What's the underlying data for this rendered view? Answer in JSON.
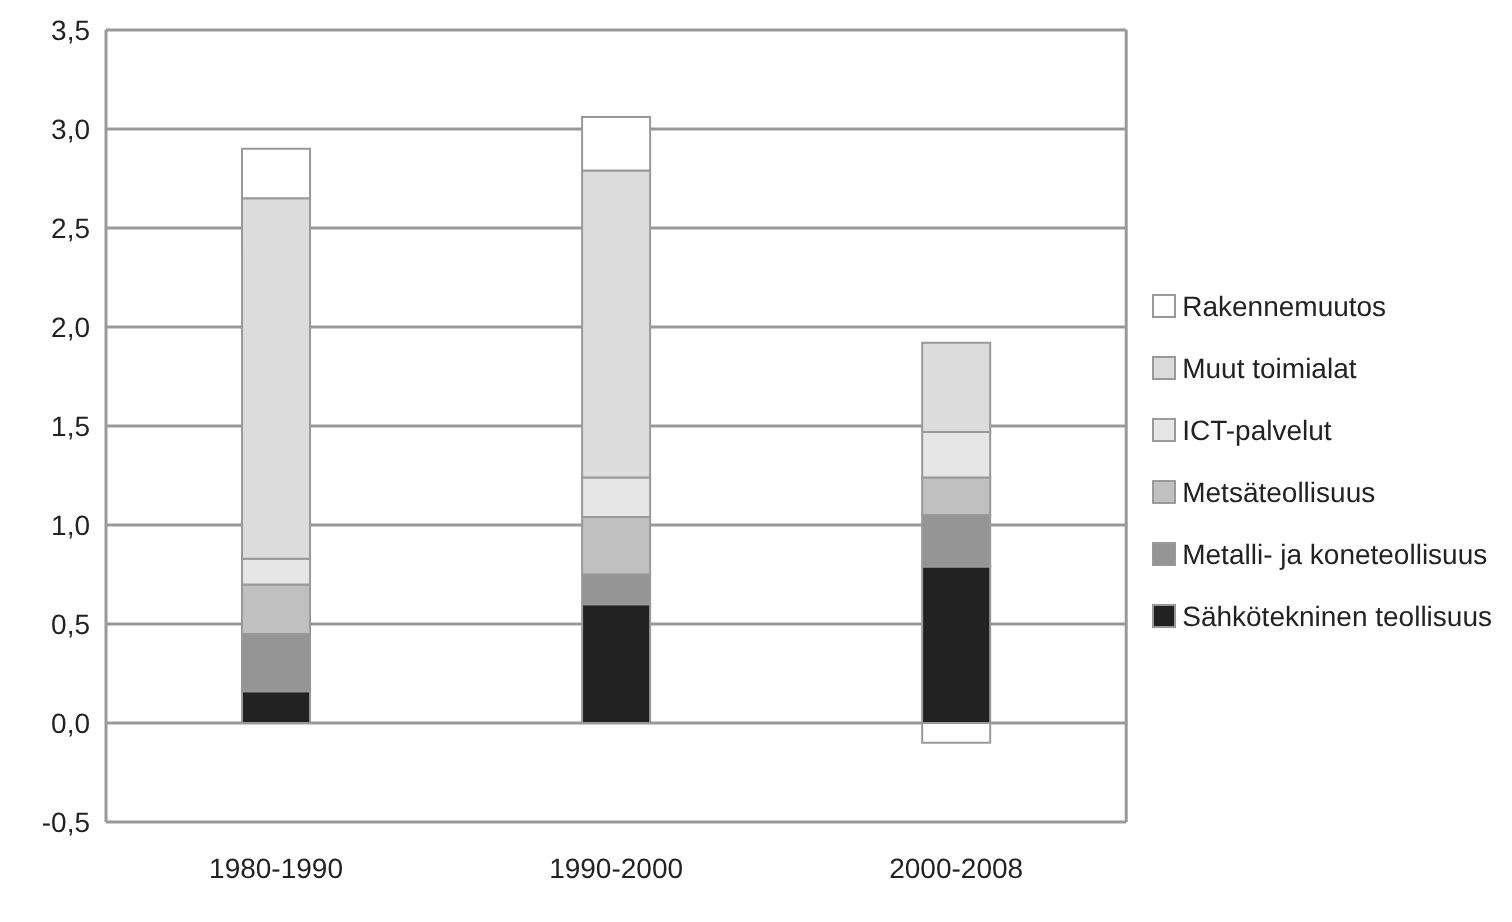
{
  "chart_data": {
    "type": "bar",
    "stacked": true,
    "categories": [
      "1980-1990",
      "1990-2000",
      "2000-2008"
    ],
    "series": [
      {
        "name": "Sähkötekninen teollisuus",
        "color": "#222222",
        "values": [
          0.16,
          0.6,
          0.79
        ]
      },
      {
        "name": "Metalli- ja koneteollisuus",
        "color": "#959595",
        "values": [
          0.29,
          0.15,
          0.26
        ]
      },
      {
        "name": "Metsäteollisuus",
        "color": "#c0c0c0",
        "values": [
          0.25,
          0.29,
          0.19
        ]
      },
      {
        "name": "ICT-palvelut",
        "color": "#e6e6e6",
        "values": [
          0.13,
          0.2,
          0.23
        ]
      },
      {
        "name": "Muut toimialat",
        "color": "#dcdcdc",
        "values": [
          1.82,
          1.55,
          0.45
        ]
      },
      {
        "name": "Rakennemuutos",
        "color": "#ffffff",
        "values": [
          0.25,
          0.27,
          -0.1
        ]
      }
    ],
    "ylim": [
      -0.5,
      3.5
    ],
    "yticks": [
      {
        "value": -0.5,
        "label": "-0,5"
      },
      {
        "value": 0,
        "label": "0,0"
      },
      {
        "value": 0.5,
        "label": "0,5"
      },
      {
        "value": 1,
        "label": "1,0"
      },
      {
        "value": 1.5,
        "label": "1,5"
      },
      {
        "value": 2,
        "label": "2,0"
      },
      {
        "value": 2.5,
        "label": "2,5"
      },
      {
        "value": 3,
        "label": "3,0"
      },
      {
        "value": 3.5,
        "label": "3,5"
      }
    ],
    "grid": "y",
    "legend": "right"
  }
}
